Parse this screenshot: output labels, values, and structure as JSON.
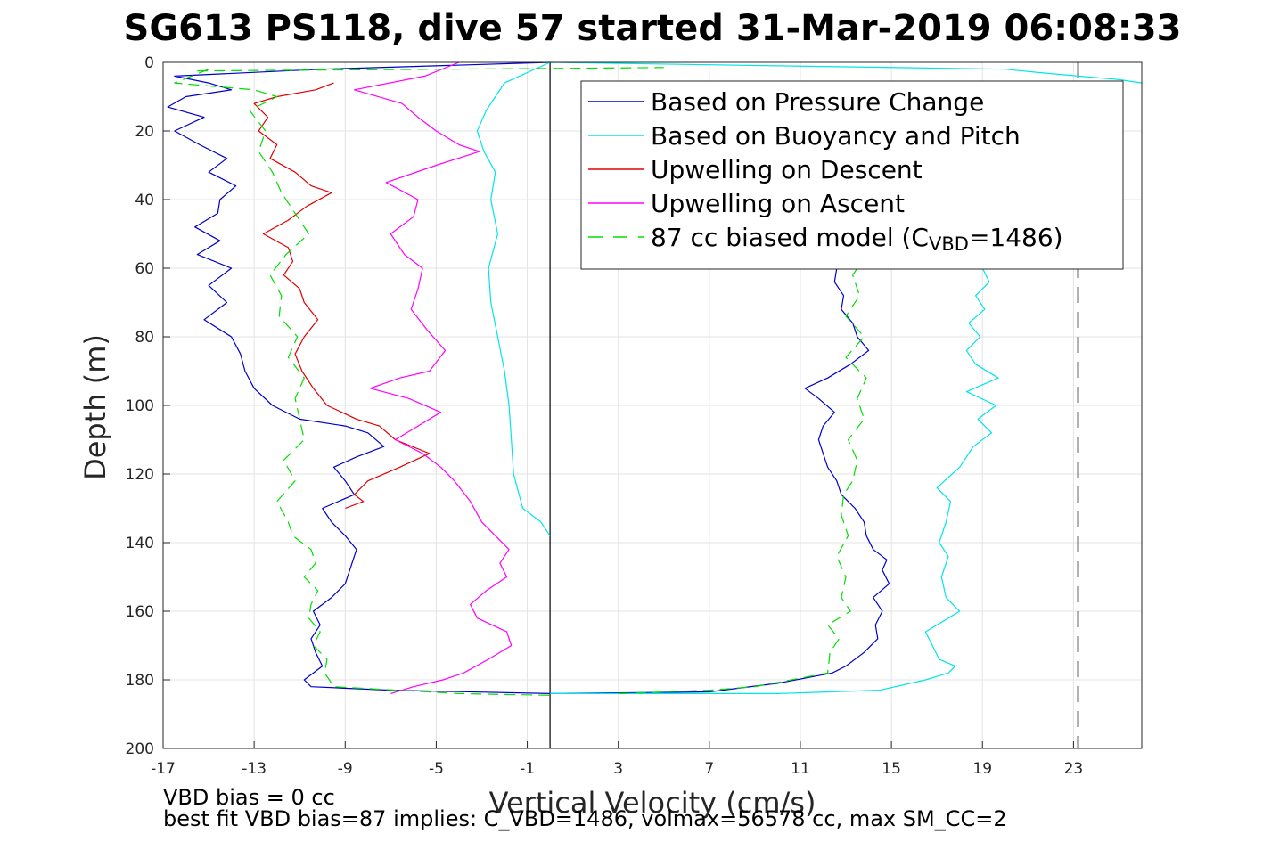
{
  "chart_data": {
    "type": "line",
    "title": "SG613 PS118, dive 57 started 31-Mar-2019 06:08:33",
    "xlabel": "Vertical Velocity (cm/s)",
    "ylabel": "Depth (m)",
    "xlim": [
      -17,
      26
    ],
    "ylim": [
      0,
      200
    ],
    "y_reversed": true,
    "grid": true,
    "legend_position": "top-right",
    "xticks": [
      -17,
      -13,
      -9,
      -5,
      -1,
      3,
      7,
      11,
      15,
      19,
      23
    ],
    "yticks": [
      0,
      20,
      40,
      60,
      80,
      100,
      120,
      140,
      160,
      180,
      200
    ],
    "reference_lines": [
      {
        "name": "zero-line",
        "x": 0,
        "color": "#000000",
        "dash": "solid"
      },
      {
        "name": "dashed-reference",
        "x": 23.2,
        "color": "#666666",
        "dash": "dashed"
      }
    ],
    "legend": [
      {
        "label": "Based on Pressure Change",
        "color": "#0000cc",
        "dash": "solid"
      },
      {
        "label": "Based on Buoyancy and Pitch",
        "color": "#00e5e5",
        "dash": "solid"
      },
      {
        "label": "Upwelling on Descent",
        "color": "#e00000",
        "dash": "solid"
      },
      {
        "label": "Upwelling on Ascent",
        "color": "#ff00ff",
        "dash": "solid"
      },
      {
        "label_main": "87 cc biased model (C",
        "label_sub": "VBD",
        "label_end": "=1486)",
        "color": "#00dd00",
        "dash": "dashed"
      }
    ],
    "series": [
      {
        "key": "pressure_descent",
        "color": "#0000cc",
        "dash": "solid",
        "points": [
          [
            0,
            0
          ],
          [
            -10,
            2
          ],
          [
            -16.5,
            4
          ],
          [
            -15,
            6
          ],
          [
            -14,
            8
          ],
          [
            -16,
            10
          ],
          [
            -16.8,
            13
          ],
          [
            -15.2,
            16
          ],
          [
            -16.5,
            20
          ],
          [
            -15.4,
            24
          ],
          [
            -14.2,
            28
          ],
          [
            -15,
            32
          ],
          [
            -13.8,
            36
          ],
          [
            -14.5,
            40
          ],
          [
            -14.6,
            44
          ],
          [
            -15.6,
            48
          ],
          [
            -14.5,
            52
          ],
          [
            -15.5,
            56
          ],
          [
            -14,
            60
          ],
          [
            -15,
            65
          ],
          [
            -14.2,
            70
          ],
          [
            -15.2,
            75
          ],
          [
            -14,
            80
          ],
          [
            -13.6,
            85
          ],
          [
            -13.4,
            90
          ],
          [
            -13,
            95
          ],
          [
            -12.2,
            100
          ],
          [
            -11,
            104
          ],
          [
            -9,
            106
          ],
          [
            -8,
            108
          ],
          [
            -7.3,
            112
          ],
          [
            -8.5,
            115
          ],
          [
            -9.5,
            118
          ],
          [
            -9,
            122
          ],
          [
            -8.6,
            126
          ],
          [
            -10,
            130
          ],
          [
            -9.6,
            134
          ],
          [
            -9,
            138
          ],
          [
            -8.5,
            142
          ],
          [
            -8.8,
            148
          ],
          [
            -9,
            152
          ],
          [
            -9.6,
            156
          ],
          [
            -10.4,
            160
          ],
          [
            -10.1,
            164
          ],
          [
            -10.5,
            168
          ],
          [
            -10.3,
            172
          ],
          [
            -10,
            176
          ],
          [
            -10.8,
            180
          ],
          [
            -10.5,
            182
          ],
          [
            -7,
            183
          ],
          [
            0,
            184
          ]
        ]
      },
      {
        "key": "pressure_ascent",
        "color": "#0000cc",
        "dash": "solid",
        "points": [
          [
            0,
            184
          ],
          [
            7,
            183.5
          ],
          [
            10,
            181
          ],
          [
            12.4,
            178
          ],
          [
            13,
            176
          ],
          [
            13.8,
            172
          ],
          [
            14.4,
            168
          ],
          [
            14.3,
            164
          ],
          [
            14.6,
            160
          ],
          [
            14.2,
            156
          ],
          [
            14.9,
            152
          ],
          [
            14.6,
            148
          ],
          [
            14.8,
            145
          ],
          [
            14.2,
            142
          ],
          [
            13.9,
            138
          ],
          [
            13.8,
            134
          ],
          [
            13.4,
            130
          ],
          [
            12.8,
            126
          ],
          [
            12.6,
            122
          ],
          [
            12.2,
            118
          ],
          [
            12.0,
            114
          ],
          [
            11.8,
            110
          ],
          [
            12.0,
            106
          ],
          [
            12.5,
            102
          ],
          [
            11.8,
            98
          ],
          [
            11.2,
            95
          ],
          [
            12.2,
            92
          ],
          [
            13.2,
            88
          ],
          [
            14.0,
            84
          ],
          [
            13.5,
            80
          ],
          [
            13.3,
            76
          ],
          [
            12.8,
            72
          ],
          [
            12.9,
            68
          ],
          [
            12.5,
            64
          ],
          [
            12.6,
            60
          ]
        ]
      },
      {
        "key": "buoyancy_descent",
        "color": "#00e5e5",
        "dash": "solid",
        "points": [
          [
            0,
            0
          ],
          [
            -2.0,
            6
          ],
          [
            -2.4,
            10
          ],
          [
            -2.8,
            14
          ],
          [
            -3.2,
            20
          ],
          [
            -2.9,
            26
          ],
          [
            -2.4,
            32
          ],
          [
            -2.6,
            40
          ],
          [
            -2.3,
            50
          ],
          [
            -2.7,
            60
          ],
          [
            -2.6,
            70
          ],
          [
            -2.3,
            80
          ],
          [
            -2.0,
            90
          ],
          [
            -1.8,
            100
          ],
          [
            -1.7,
            110
          ],
          [
            -1.6,
            120
          ],
          [
            -1.2,
            130
          ],
          [
            -0.4,
            134
          ],
          [
            0,
            138
          ]
        ]
      },
      {
        "key": "buoyancy_top",
        "color": "#00e5e5",
        "dash": "solid",
        "points": [
          [
            0,
            0
          ],
          [
            20,
            2
          ],
          [
            21.5,
            3
          ],
          [
            25,
            5
          ],
          [
            26,
            6
          ]
        ]
      },
      {
        "key": "buoyancy_ascent",
        "color": "#00e5e5",
        "dash": "solid",
        "points": [
          [
            0,
            184
          ],
          [
            10,
            184
          ],
          [
            14.5,
            183
          ],
          [
            16.5,
            180
          ],
          [
            17.5,
            178
          ],
          [
            17.8,
            176
          ],
          [
            17.1,
            174
          ],
          [
            16.8,
            170
          ],
          [
            16.5,
            166
          ],
          [
            17.5,
            162
          ],
          [
            18.0,
            160
          ],
          [
            17.4,
            156
          ],
          [
            17.2,
            150
          ],
          [
            17.5,
            144
          ],
          [
            17.1,
            140
          ],
          [
            17.4,
            134
          ],
          [
            17.6,
            128
          ],
          [
            17.0,
            124
          ],
          [
            18.0,
            118
          ],
          [
            18.6,
            112
          ],
          [
            19.4,
            108
          ],
          [
            18.8,
            104
          ],
          [
            19.6,
            100
          ],
          [
            18.3,
            96
          ],
          [
            19.7,
            92
          ],
          [
            18.7,
            88
          ],
          [
            18.3,
            84
          ],
          [
            18.9,
            80
          ],
          [
            18.4,
            76
          ],
          [
            19.1,
            72
          ],
          [
            18.7,
            68
          ],
          [
            19.3,
            64
          ],
          [
            19.0,
            60
          ]
        ]
      },
      {
        "key": "upwelling_descent",
        "color": "#e00000",
        "dash": "solid",
        "points": [
          [
            -9.5,
            6
          ],
          [
            -10.3,
            8
          ],
          [
            -12.0,
            10
          ],
          [
            -13.0,
            12
          ],
          [
            -12.4,
            16
          ],
          [
            -12.8,
            20
          ],
          [
            -12.0,
            24
          ],
          [
            -12.3,
            28
          ],
          [
            -11.2,
            32
          ],
          [
            -10.5,
            36
          ],
          [
            -9.6,
            38
          ],
          [
            -10.7,
            42
          ],
          [
            -11.5,
            46
          ],
          [
            -12.6,
            50
          ],
          [
            -11.5,
            54
          ],
          [
            -11.3,
            58
          ],
          [
            -11.7,
            62
          ],
          [
            -11.0,
            66
          ],
          [
            -10.8,
            70
          ],
          [
            -10.2,
            75
          ],
          [
            -10.8,
            80
          ],
          [
            -11.2,
            85
          ],
          [
            -10.9,
            90
          ],
          [
            -10.4,
            95
          ],
          [
            -9.8,
            100
          ],
          [
            -8.5,
            104
          ],
          [
            -7.5,
            106
          ],
          [
            -6.8,
            110
          ],
          [
            -5.3,
            114
          ],
          [
            -6.6,
            118
          ],
          [
            -8.0,
            122
          ],
          [
            -8.6,
            126
          ],
          [
            -8.2,
            128
          ],
          [
            -9.0,
            130
          ]
        ]
      },
      {
        "key": "upwelling_ascent",
        "color": "#ff00ff",
        "dash": "solid",
        "points": [
          [
            -4,
            0
          ],
          [
            -5.5,
            4
          ],
          [
            -8.6,
            8
          ],
          [
            -6.5,
            12
          ],
          [
            -5.8,
            16
          ],
          [
            -5.0,
            20
          ],
          [
            -4.0,
            24
          ],
          [
            -3.1,
            26
          ],
          [
            -5.0,
            30
          ],
          [
            -7.2,
            35
          ],
          [
            -5.8,
            40
          ],
          [
            -6.0,
            45
          ],
          [
            -7.0,
            50
          ],
          [
            -6.4,
            56
          ],
          [
            -5.6,
            60
          ],
          [
            -5.8,
            66
          ],
          [
            -6.1,
            72
          ],
          [
            -5.4,
            78
          ],
          [
            -4.6,
            84
          ],
          [
            -5.3,
            90
          ],
          [
            -6.6,
            92
          ],
          [
            -7.9,
            95
          ],
          [
            -6.2,
            98
          ],
          [
            -4.8,
            102
          ],
          [
            -5.8,
            106
          ],
          [
            -6.8,
            110
          ],
          [
            -5.6,
            114
          ],
          [
            -4.8,
            118
          ],
          [
            -4.2,
            122
          ],
          [
            -3.5,
            128
          ],
          [
            -3.0,
            134
          ],
          [
            -2.4,
            138
          ],
          [
            -1.8,
            142
          ],
          [
            -2.2,
            146
          ],
          [
            -1.9,
            150
          ],
          [
            -2.8,
            154
          ],
          [
            -3.5,
            158
          ],
          [
            -3.2,
            162
          ],
          [
            -1.9,
            166
          ],
          [
            -1.7,
            170
          ],
          [
            -2.7,
            174
          ],
          [
            -3.8,
            178
          ],
          [
            -4.7,
            180
          ],
          [
            -6.0,
            182
          ],
          [
            -7.0,
            184
          ]
        ]
      },
      {
        "key": "model_descent",
        "color": "#00dd00",
        "dash": "dashed",
        "points": [
          [
            -15,
            2
          ],
          [
            -16.5,
            6
          ],
          [
            -13,
            8
          ],
          [
            -12,
            10
          ],
          [
            -13.2,
            14
          ],
          [
            -12.5,
            20
          ],
          [
            -12.8,
            26
          ],
          [
            -12.2,
            32
          ],
          [
            -11.8,
            38
          ],
          [
            -11.2,
            44
          ],
          [
            -10.6,
            50
          ],
          [
            -11.6,
            56
          ],
          [
            -12.3,
            62
          ],
          [
            -11.8,
            68
          ],
          [
            -11.9,
            74
          ],
          [
            -11.1,
            80
          ],
          [
            -11.5,
            86
          ],
          [
            -10.8,
            92
          ],
          [
            -11.2,
            98
          ],
          [
            -11.0,
            104
          ],
          [
            -10.8,
            110
          ],
          [
            -11.7,
            116
          ],
          [
            -11.2,
            122
          ],
          [
            -12.0,
            128
          ],
          [
            -11.5,
            134
          ],
          [
            -11.3,
            138
          ],
          [
            -10.5,
            142
          ],
          [
            -10.3,
            146
          ],
          [
            -10.8,
            150
          ],
          [
            -10.2,
            154
          ],
          [
            -10.5,
            158
          ],
          [
            -10.6,
            162
          ],
          [
            -10.1,
            166
          ],
          [
            -10.4,
            170
          ],
          [
            -9.8,
            174
          ],
          [
            -9.9,
            178
          ],
          [
            -9.5,
            182
          ],
          [
            -4,
            184
          ],
          [
            0,
            184.5
          ]
        ]
      },
      {
        "key": "model_ascent",
        "color": "#00dd00",
        "dash": "dashed",
        "points": [
          [
            3,
            184
          ],
          [
            7,
            183
          ],
          [
            9,
            182
          ],
          [
            12.2,
            178
          ],
          [
            12.3,
            172
          ],
          [
            12.7,
            168
          ],
          [
            12.2,
            164
          ],
          [
            13.2,
            160
          ],
          [
            12.8,
            156
          ],
          [
            13.0,
            150
          ],
          [
            12.6,
            144
          ],
          [
            13.1,
            138
          ],
          [
            12.8,
            132
          ],
          [
            12.9,
            126
          ],
          [
            13.3,
            122
          ],
          [
            13.5,
            116
          ],
          [
            13.1,
            110
          ],
          [
            13.8,
            104
          ],
          [
            13.5,
            98
          ],
          [
            13.9,
            92
          ],
          [
            13.0,
            86
          ],
          [
            13.8,
            80
          ],
          [
            13.0,
            74
          ],
          [
            13.6,
            68
          ],
          [
            13.3,
            62
          ],
          [
            13.5,
            60
          ]
        ]
      },
      {
        "key": "model_top",
        "color": "#00dd00",
        "dash": "dashed",
        "points": [
          [
            -15.5,
            2.5
          ],
          [
            0,
            1.8
          ],
          [
            5,
            1.5
          ]
        ]
      }
    ]
  },
  "footer": {
    "line1": "VBD bias = 0 cc",
    "line2": "best fit VBD bias=87 implies: C_VBD=1486, volmax=56578 cc, max SM_CC=2"
  }
}
